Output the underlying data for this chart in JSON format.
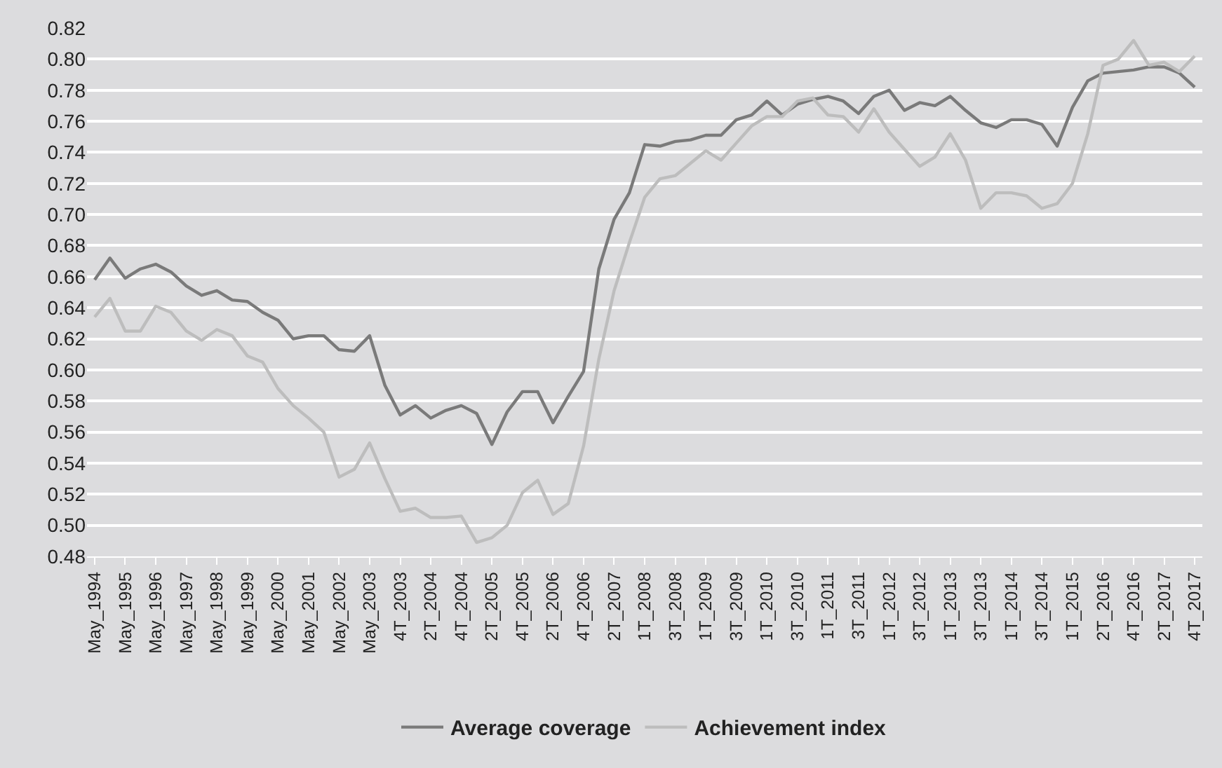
{
  "chart_data": {
    "type": "line",
    "categories": [
      "May_1994",
      null,
      "May_1995",
      null,
      "May_1996",
      null,
      "May_1997",
      null,
      "May_1998",
      null,
      "May_1999",
      null,
      "May_2000",
      null,
      "May_2001",
      null,
      "May_2002",
      null,
      "May_2003",
      null,
      "4T_2003",
      null,
      "2T_2004",
      null,
      "4T_2004",
      null,
      "2T_2005",
      null,
      "4T_2005",
      null,
      "2T_2006",
      null,
      "4T_2006",
      null,
      "2T_2007",
      null,
      "1T_2008",
      null,
      "3T_2008",
      null,
      "1T_2009",
      null,
      "3T_2009",
      null,
      "1T_2010",
      null,
      "3T_2010",
      null,
      "1T_2011",
      null,
      "3T_2011",
      null,
      "1T_2012",
      null,
      "3T_2012",
      null,
      "1T_2013",
      null,
      "3T_2013",
      null,
      "1T_2014",
      null,
      "3T_2014",
      null,
      "1T_2015",
      null,
      "2T_2016",
      null,
      "4T_2016",
      null,
      "2T_2017",
      null,
      "4T_2017"
    ],
    "series": [
      {
        "name": "Average coverage",
        "color": "#7a7a7a",
        "values": [
          0.658,
          0.672,
          0.659,
          0.665,
          0.668,
          0.663,
          0.654,
          0.648,
          0.651,
          0.645,
          0.644,
          0.637,
          0.632,
          0.62,
          0.622,
          0.622,
          0.613,
          0.612,
          0.622,
          0.59,
          0.571,
          0.577,
          0.569,
          0.574,
          0.577,
          0.572,
          0.552,
          0.573,
          0.586,
          0.586,
          0.566,
          0.583,
          0.599,
          0.665,
          0.697,
          0.714,
          0.745,
          0.744,
          0.747,
          0.748,
          0.751,
          0.751,
          0.761,
          0.764,
          0.773,
          0.764,
          0.771,
          0.774,
          0.776,
          0.773,
          0.765,
          0.776,
          0.78,
          0.767,
          0.772,
          0.77,
          0.776,
          0.767,
          0.759,
          0.756,
          0.761,
          0.761,
          0.758,
          0.744,
          0.769,
          0.786,
          0.791,
          0.792,
          0.793,
          0.795,
          0.795,
          0.791,
          0.782
        ]
      },
      {
        "name": "Achievement index",
        "color": "#bdbdbd",
        "values": [
          0.634,
          0.646,
          0.625,
          0.625,
          0.641,
          0.637,
          0.625,
          0.619,
          0.626,
          0.622,
          0.609,
          0.605,
          0.588,
          0.577,
          0.569,
          0.56,
          0.531,
          0.536,
          0.553,
          0.53,
          0.509,
          0.511,
          0.505,
          0.505,
          0.506,
          0.489,
          0.492,
          0.5,
          0.521,
          0.529,
          0.507,
          0.514,
          0.551,
          0.607,
          0.651,
          0.682,
          0.711,
          0.723,
          0.725,
          0.733,
          0.741,
          0.735,
          0.746,
          0.757,
          0.763,
          0.763,
          0.773,
          0.775,
          0.764,
          0.763,
          0.753,
          0.768,
          0.753,
          0.742,
          0.731,
          0.737,
          0.752,
          0.735,
          0.704,
          0.714,
          0.714,
          0.712,
          0.704,
          0.707,
          0.72,
          0.752,
          0.796,
          0.8,
          0.812,
          0.796,
          0.798,
          0.792,
          0.802
        ]
      }
    ],
    "ylim": [
      0.48,
      0.82
    ],
    "yticks": [
      0.48,
      {
        "value": 0.5,
        "label": "0.50"
      },
      0.52,
      0.54,
      0.56,
      0.58,
      {
        "value": 0.6,
        "label": "0.60"
      },
      0.62,
      0.64,
      0.66,
      0.68,
      {
        "value": 0.7,
        "label": "0.70"
      },
      0.72,
      0.74,
      0.76,
      0.78,
      {
        "value": 0.8,
        "label": "0.80"
      },
      0.82
    ],
    "grid": "y",
    "legend": "bottom",
    "marker": "none",
    "line_style": "solid"
  }
}
